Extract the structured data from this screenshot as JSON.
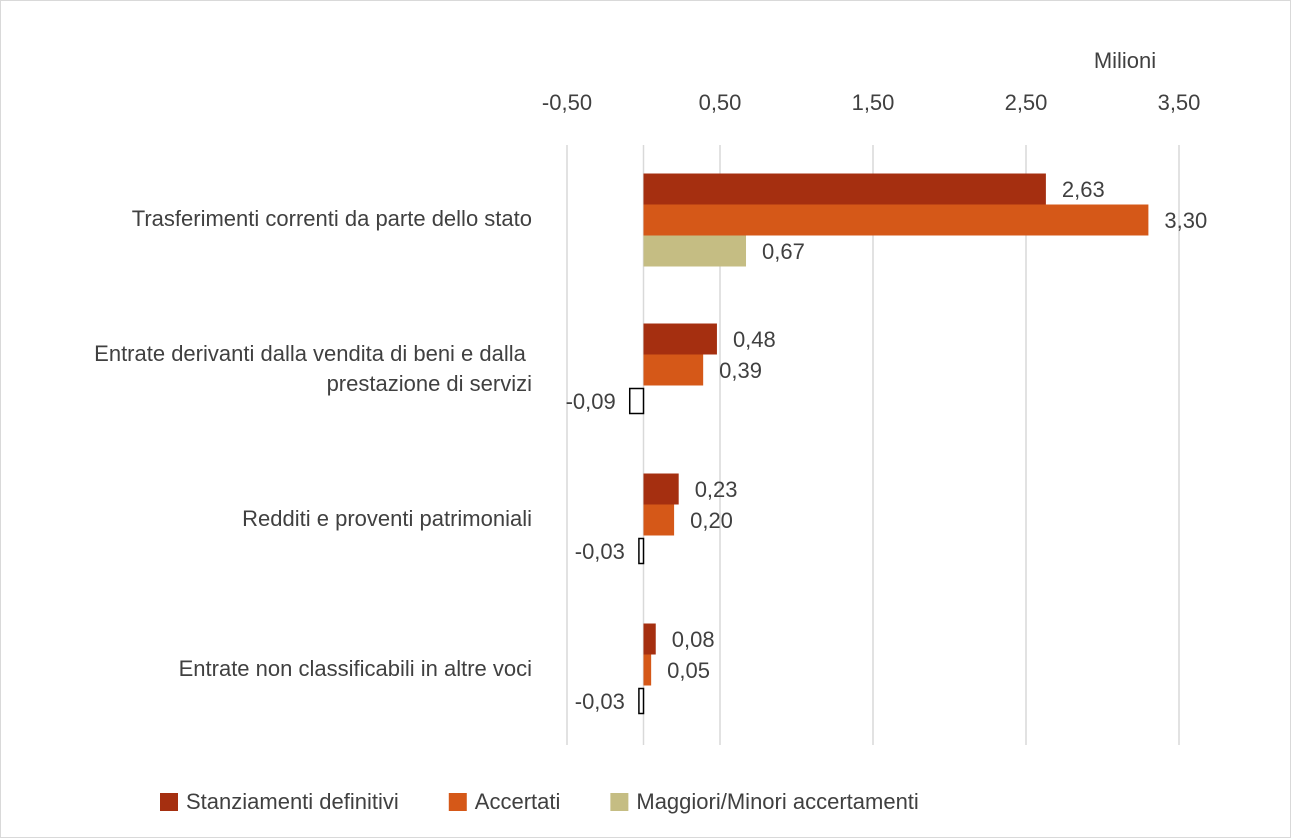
{
  "chart_data": {
    "type": "hbar",
    "axis_unit_label": "Milioni",
    "categories": [
      "Trasferimenti correnti da parte dello stato",
      "Entrate derivanti dalla vendita di beni e dalla prestazione di servizi",
      "Redditi e proventi patrimoniali",
      "Entrate non classificabili in altre voci"
    ],
    "series": [
      {
        "name": "Stanziamenti definitivi",
        "color": "#a52f10",
        "values": [
          2.63,
          0.48,
          0.23,
          0.08
        ],
        "value_labels": [
          "2,63",
          "0,48",
          "0,23",
          "0,08"
        ]
      },
      {
        "name": "Accertati",
        "color": "#d55818",
        "values": [
          3.3,
          0.39,
          0.2,
          0.05
        ],
        "value_labels": [
          "3,30",
          "0,39",
          "0,20",
          "0,05"
        ]
      },
      {
        "name": "Maggiori/Minori accertamenti",
        "color": "#c5bd83",
        "values": [
          0.67,
          -0.09,
          -0.03,
          -0.03
        ],
        "value_labels": [
          "0,67",
          "-0,09",
          "-0,03",
          "-0,03"
        ]
      }
    ],
    "invert_if_negative": true,
    "xlim": [
      -0.5,
      3.5
    ],
    "xticks": [
      {
        "value": -0.5,
        "label": "-0,50"
      },
      {
        "value": 0.5,
        "label": "0,50"
      },
      {
        "value": 1.5,
        "label": "1,50"
      },
      {
        "value": 2.5,
        "label": "2,50"
      },
      {
        "value": 3.5,
        "label": "3,50"
      }
    ],
    "grid": true,
    "legend": "bottom"
  }
}
